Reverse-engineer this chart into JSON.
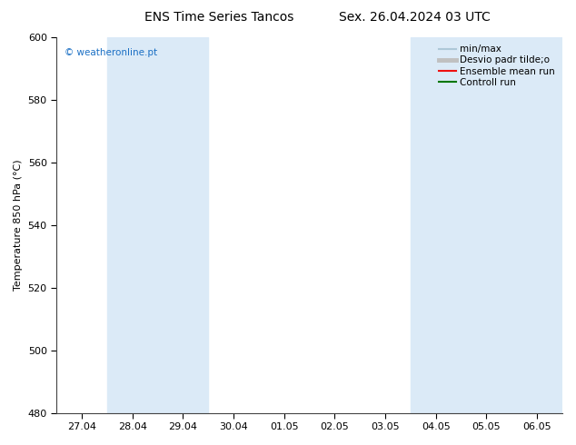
{
  "title_left": "ENS Time Series Tancos",
  "title_right": "Sex. 26.04.2024 03 UTC",
  "ylabel": "Temperature 850 hPa (°C)",
  "ylim": [
    480,
    600
  ],
  "yticks": [
    480,
    500,
    520,
    540,
    560,
    580,
    600
  ],
  "xtick_labels": [
    "27.04",
    "28.04",
    "29.04",
    "30.04",
    "01.05",
    "02.05",
    "03.05",
    "04.05",
    "05.05",
    "06.05"
  ],
  "watermark": "© weatheronline.pt",
  "watermark_color": "#1a6fc4",
  "bg_color": "#ffffff",
  "plot_bg_color": "#ffffff",
  "shaded_color": "#dbeaf7",
  "shaded_indices": [
    1,
    2,
    7,
    8,
    9
  ],
  "legend_entries": [
    {
      "label": "min/max",
      "color": "#aec8d8",
      "lw": 1.5
    },
    {
      "label": "Desvio padr tilde;o",
      "color": "#c0c0c0",
      "lw": 3.5
    },
    {
      "label": "Ensemble mean run",
      "color": "#ee1111",
      "lw": 1.5
    },
    {
      "label": "Controll run",
      "color": "#007700",
      "lw": 1.5
    }
  ],
  "title_fontsize": 10,
  "tick_fontsize": 8,
  "ylabel_fontsize": 8,
  "legend_fontsize": 7.5
}
